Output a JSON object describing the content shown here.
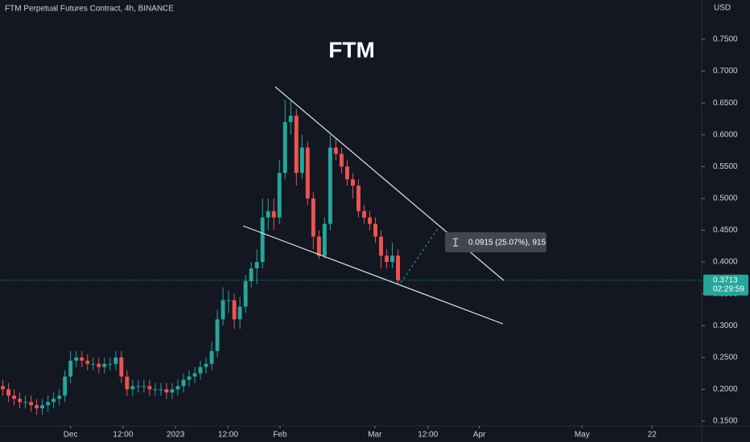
{
  "chart_data": {
    "type": "candlestick",
    "title": "FTM Perpetual Futures Contract, 4h, BINANCE",
    "annotation": "FTM",
    "y_axis_unit": "USD",
    "measure_label": "0.0915 (25.07%), 915",
    "last_price": 0.3713,
    "last_price_label": "0.3713",
    "countdown": "02:29:59",
    "up_color": "#26a69a",
    "down_color": "#ef5350",
    "grid": false,
    "open": [
      0.205,
      0.2,
      0.19,
      0.185,
      0.18,
      0.18,
      0.175,
      0.17,
      0.175,
      0.18,
      0.185,
      0.19,
      0.22,
      0.245,
      0.25,
      0.245,
      0.24,
      0.24,
      0.235,
      0.24,
      0.24,
      0.25,
      0.22,
      0.2,
      0.205,
      0.205,
      0.205,
      0.2,
      0.2,
      0.2,
      0.195,
      0.2,
      0.205,
      0.215,
      0.22,
      0.225,
      0.235,
      0.24,
      0.26,
      0.31,
      0.34,
      0.34,
      0.31,
      0.33,
      0.37,
      0.39,
      0.4,
      0.47,
      0.48,
      0.47,
      0.54,
      0.62,
      0.63,
      0.54,
      0.58,
      0.5,
      0.44,
      0.41,
      0.46,
      0.58,
      0.57,
      0.55,
      0.53,
      0.52,
      0.48,
      0.47,
      0.46,
      0.44,
      0.41,
      0.4,
      0.41
    ],
    "high": [
      0.215,
      0.21,
      0.2,
      0.195,
      0.19,
      0.19,
      0.185,
      0.185,
      0.19,
      0.195,
      0.2,
      0.23,
      0.26,
      0.26,
      0.26,
      0.255,
      0.25,
      0.25,
      0.25,
      0.25,
      0.26,
      0.26,
      0.23,
      0.215,
      0.215,
      0.215,
      0.215,
      0.21,
      0.21,
      0.21,
      0.21,
      0.215,
      0.225,
      0.23,
      0.235,
      0.245,
      0.25,
      0.275,
      0.325,
      0.36,
      0.355,
      0.35,
      0.345,
      0.38,
      0.4,
      0.42,
      0.5,
      0.5,
      0.5,
      0.56,
      0.655,
      0.655,
      0.64,
      0.6,
      0.59,
      0.51,
      0.45,
      0.47,
      0.6,
      0.595,
      0.58,
      0.56,
      0.54,
      0.53,
      0.49,
      0.48,
      0.47,
      0.45,
      0.42,
      0.43,
      0.42
    ],
    "low": [
      0.19,
      0.18,
      0.175,
      0.17,
      0.17,
      0.165,
      0.16,
      0.16,
      0.165,
      0.17,
      0.175,
      0.18,
      0.21,
      0.235,
      0.235,
      0.23,
      0.23,
      0.225,
      0.225,
      0.23,
      0.23,
      0.21,
      0.19,
      0.19,
      0.195,
      0.195,
      0.19,
      0.19,
      0.19,
      0.185,
      0.185,
      0.19,
      0.195,
      0.205,
      0.21,
      0.215,
      0.225,
      0.23,
      0.25,
      0.3,
      0.32,
      0.295,
      0.295,
      0.32,
      0.36,
      0.365,
      0.39,
      0.45,
      0.45,
      0.46,
      0.53,
      0.6,
      0.52,
      0.53,
      0.49,
      0.42,
      0.405,
      0.405,
      0.45,
      0.56,
      0.54,
      0.52,
      0.5,
      0.47,
      0.46,
      0.45,
      0.43,
      0.39,
      0.39,
      0.39,
      0.365
    ],
    "close": [
      0.2,
      0.19,
      0.185,
      0.18,
      0.18,
      0.175,
      0.17,
      0.175,
      0.18,
      0.185,
      0.19,
      0.22,
      0.245,
      0.25,
      0.245,
      0.24,
      0.24,
      0.235,
      0.24,
      0.24,
      0.25,
      0.22,
      0.2,
      0.205,
      0.205,
      0.205,
      0.2,
      0.2,
      0.2,
      0.195,
      0.2,
      0.205,
      0.215,
      0.22,
      0.225,
      0.235,
      0.24,
      0.26,
      0.31,
      0.34,
      0.34,
      0.31,
      0.33,
      0.37,
      0.39,
      0.4,
      0.47,
      0.48,
      0.47,
      0.54,
      0.62,
      0.63,
      0.54,
      0.58,
      0.5,
      0.44,
      0.41,
      0.46,
      0.58,
      0.57,
      0.55,
      0.53,
      0.52,
      0.48,
      0.47,
      0.46,
      0.44,
      0.41,
      0.4,
      0.41,
      0.3713
    ],
    "xlim": [
      -0.5,
      123.8
    ],
    "xticks": [
      {
        "value": 12,
        "label": "Dec"
      },
      {
        "value": 21.3,
        "label": "12:00"
      },
      {
        "value": 30.6,
        "label": "2023"
      },
      {
        "value": 39.9,
        "label": "12:00"
      },
      {
        "value": 49.1,
        "label": "Feb"
      },
      {
        "value": 65.9,
        "label": "Mar"
      },
      {
        "value": 75.3,
        "label": "12:00"
      },
      {
        "value": 84.4,
        "label": "Apr"
      },
      {
        "value": 102.6,
        "label": "May"
      },
      {
        "value": 115,
        "label": "22"
      }
    ],
    "ylim": [
      0.1424,
      0.8119
    ],
    "yticks": [
      {
        "value": 0.15,
        "label": "0.1500"
      },
      {
        "value": 0.2,
        "label": "0.2000"
      },
      {
        "value": 0.25,
        "label": "0.2500"
      },
      {
        "value": 0.3,
        "label": "0.3000"
      },
      {
        "value": 0.35,
        "label": "0.3500"
      },
      {
        "value": 0.4,
        "label": "0.4000"
      },
      {
        "value": 0.45,
        "label": "0.4500"
      },
      {
        "value": 0.5,
        "label": "0.5000"
      },
      {
        "value": 0.55,
        "label": "0.5500"
      },
      {
        "value": 0.6,
        "label": "0.6000"
      },
      {
        "value": 0.65,
        "label": "0.6500"
      },
      {
        "value": 0.7,
        "label": "0.7000"
      },
      {
        "value": 0.75,
        "label": "0.7500"
      }
    ]
  }
}
